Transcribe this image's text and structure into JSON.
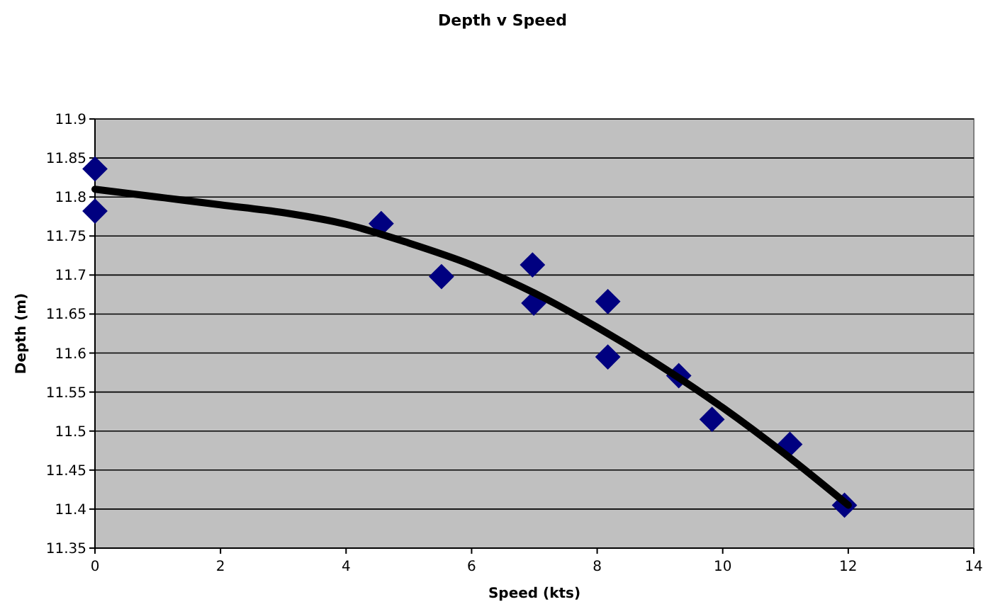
{
  "chart_data": {
    "type": "scatter",
    "title": "Depth v Speed",
    "xlabel": "Speed (kts)",
    "ylabel": "Depth (m)",
    "xlim": [
      0,
      14
    ],
    "xticks": [
      0,
      2,
      4,
      6,
      8,
      10,
      12,
      14
    ],
    "ylim": [
      11.35,
      11.9
    ],
    "yticks": [
      11.35,
      11.4,
      11.45,
      11.5,
      11.55,
      11.6,
      11.65,
      11.7,
      11.75,
      11.8,
      11.85,
      11.9
    ],
    "grid": "y",
    "series": [
      {
        "type": "scatter",
        "marker": "diamond",
        "color": "#000080",
        "x": [
          0,
          0,
          4.56,
          5.52,
          6.97,
          6.99,
          8.17,
          8.17,
          9.3,
          9.83,
          11.07,
          11.94
        ],
        "values": [
          11.836,
          11.782,
          11.766,
          11.698,
          11.713,
          11.664,
          11.666,
          11.595,
          11.571,
          11.515,
          11.483,
          11.405
        ]
      },
      {
        "type": "line",
        "marker": "none",
        "color": "#000000",
        "x": [
          0,
          1,
          2,
          3,
          4,
          5,
          6,
          7,
          8,
          9,
          10,
          11,
          12
        ],
        "values": [
          11.81,
          11.8,
          11.79,
          11.78,
          11.765,
          11.741,
          11.713,
          11.677,
          11.633,
          11.584,
          11.53,
          11.47,
          11.405
        ]
      }
    ]
  }
}
